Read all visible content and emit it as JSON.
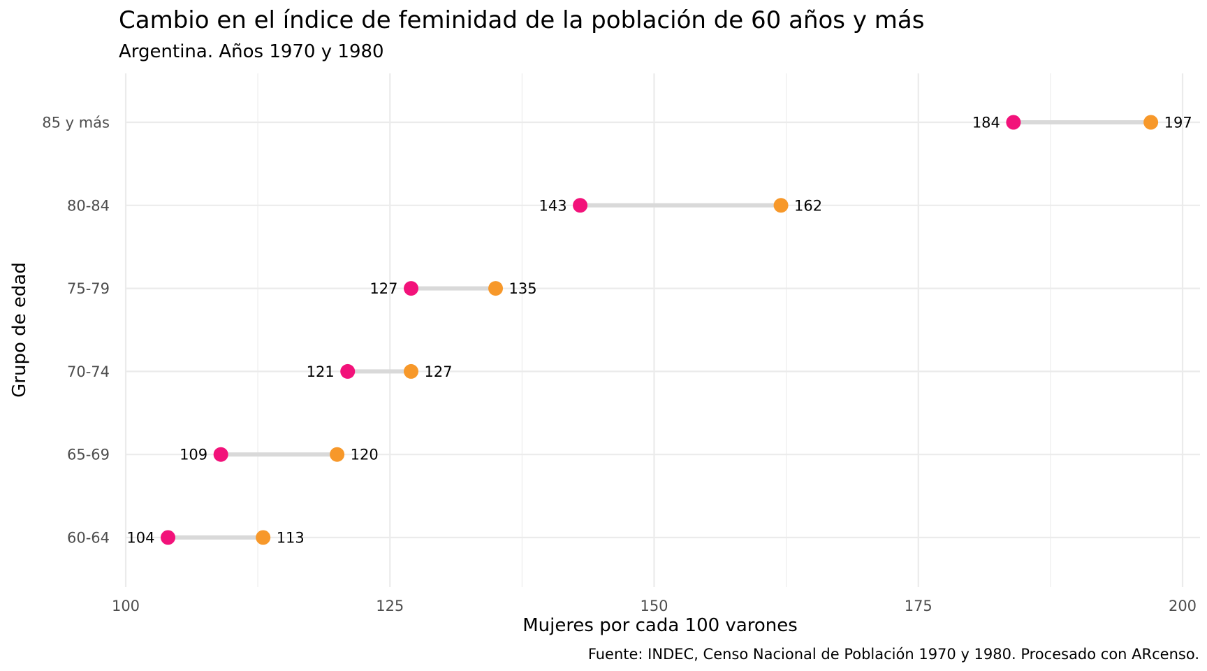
{
  "chart_data": {
    "type": "dumbbell",
    "title": "Cambio en el índice de feminidad de la población de 60 años y más",
    "subtitle": "Argentina. Años 1970 y 1980",
    "xlabel": "Mujeres por cada 100 varones",
    "ylabel": "Grupo de edad",
    "caption": "Fuente: INDEC, Censo Nacional de Población 1970 y 1980. Procesado con ARcenso.",
    "xlim": [
      100,
      200
    ],
    "x_ticks": [
      100,
      125,
      150,
      175,
      200
    ],
    "x_tick_labels": [
      "100",
      "125",
      "150",
      "175",
      "200"
    ],
    "categories": [
      "60-64",
      "65-69",
      "70-74",
      "75-79",
      "80-84",
      "85 y más"
    ],
    "series": [
      {
        "values": [
          104,
          109,
          121,
          127,
          143,
          184
        ],
        "color": "#f2127a"
      },
      {
        "values": [
          113,
          120,
          127,
          135,
          162,
          197
        ],
        "color": "#f7982a"
      }
    ],
    "segment_color": "#d9d9d9",
    "grid": true,
    "legend": "none"
  }
}
